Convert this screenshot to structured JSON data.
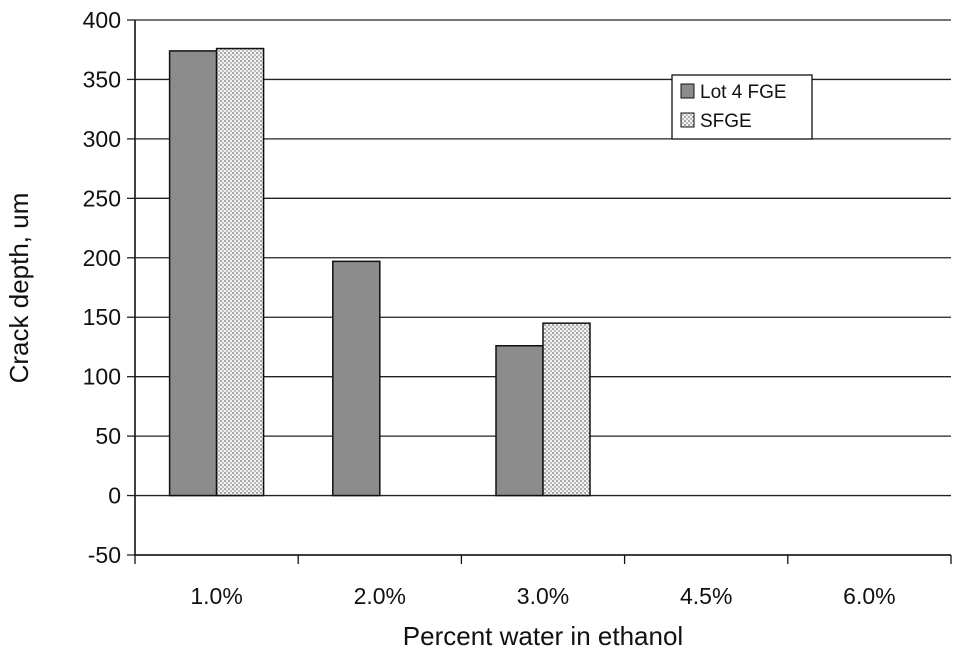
{
  "chart_data": {
    "type": "bar",
    "title": "",
    "xlabel": "Percent water in ethanol",
    "ylabel": "Crack depth, um",
    "categories": [
      "1.0%",
      "2.0%",
      "3.0%",
      "4.5%",
      "6.0%"
    ],
    "series": [
      {
        "name": "Lot 4 FGE",
        "values": [
          374,
          197,
          126,
          0,
          null
        ],
        "color": "#8c8c8c",
        "fill": "solid"
      },
      {
        "name": "SFGE",
        "values": [
          376,
          null,
          145,
          0,
          0
        ],
        "color": "#dcdcdc",
        "fill": "dotted"
      }
    ],
    "ylim": [
      -50,
      400
    ],
    "yticks": [
      -50,
      0,
      50,
      100,
      150,
      200,
      250,
      300,
      350,
      400
    ],
    "grid": true,
    "legend_position": "top-right"
  }
}
